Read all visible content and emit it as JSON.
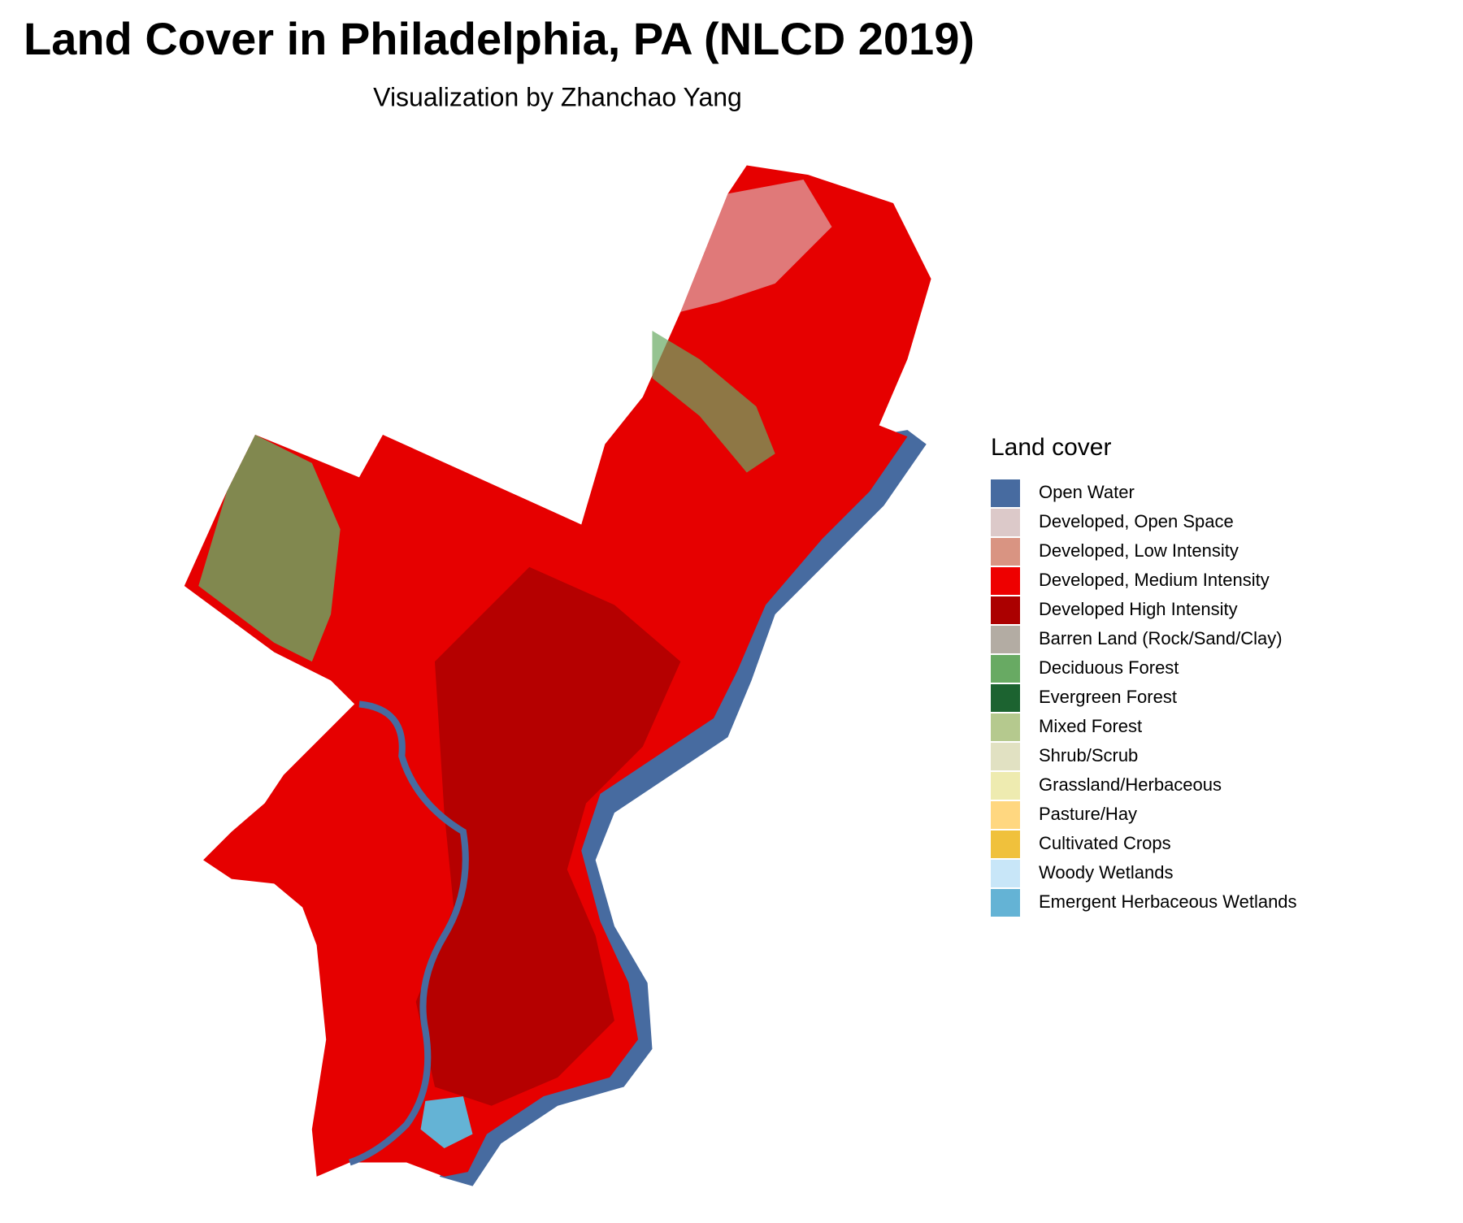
{
  "title": "Land Cover in Philadelphia, PA (NLCD 2019)",
  "subtitle": "Visualization by Zhanchao Yang",
  "legend": {
    "title": "Land cover",
    "items": [
      {
        "label": "Open Water",
        "color": "#476ba0"
      },
      {
        "label": "Developed, Open Space",
        "color": "#dcc9c9"
      },
      {
        "label": "Developed, Low Intensity",
        "color": "#d99482"
      },
      {
        "label": "Developed, Medium Intensity",
        "color": "#ee0000"
      },
      {
        "label": "Developed High Intensity",
        "color": "#ab0000"
      },
      {
        "label": "Barren Land (Rock/Sand/Clay)",
        "color": "#b3aca3"
      },
      {
        "label": "Deciduous Forest",
        "color": "#68aa63"
      },
      {
        "label": "Evergreen Forest",
        "color": "#1c6330"
      },
      {
        "label": "Mixed Forest",
        "color": "#b5c98e"
      },
      {
        "label": "Shrub/Scrub",
        "color": "#e1e1c2"
      },
      {
        "label": "Grassland/Herbaceous",
        "color": "#eeebb0"
      },
      {
        "label": "Pasture/Hay",
        "color": "#ffd780"
      },
      {
        "label": "Cultivated Crops",
        "color": "#f0c13c"
      },
      {
        "label": "Woody Wetlands",
        "color": "#c8e6f8"
      },
      {
        "label": "Emergent Herbaceous Wetlands",
        "color": "#64b3d5"
      }
    ]
  }
}
